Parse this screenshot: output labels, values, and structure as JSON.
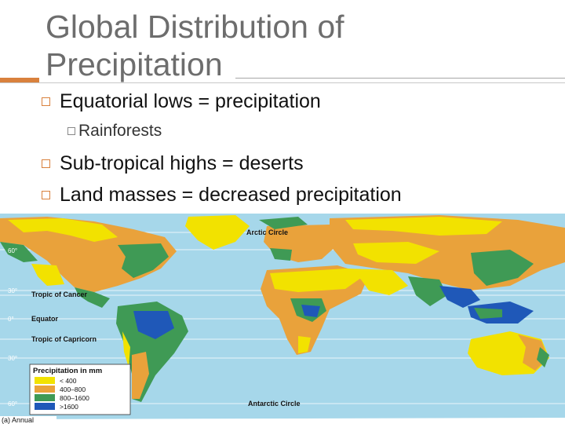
{
  "slide": {
    "title": "Global Distribution of Precipitation",
    "bullets": [
      {
        "text": "Equatorial lows = precipitation",
        "sub": [
          {
            "text": "Rainforests"
          }
        ]
      },
      {
        "text": "Sub-tropical highs = deserts",
        "sub": []
      },
      {
        "text": "Land masses = decreased precipitation",
        "sub": []
      }
    ]
  },
  "map": {
    "labels": {
      "arctic": "Arctic Circle",
      "cancer": "Tropic of Cancer",
      "equator": "Equator",
      "capricorn": "Tropic of Capricorn",
      "antarctic": "Antarctic Circle"
    },
    "latitudes": [
      "60°",
      "30°",
      "0°",
      "30°",
      "60°"
    ],
    "legend": {
      "title": "Precipitation in mm",
      "entries": [
        {
          "label": "< 400",
          "color": "#f2e200"
        },
        {
          "label": "400–800",
          "color": "#e9a23b"
        },
        {
          "label": "800–1600",
          "color": "#3f9a55"
        },
        {
          "label": ">1600",
          "color": "#1f58b8"
        }
      ]
    },
    "caption": "(a) Annual",
    "colors": {
      "ocean": "#a6d7ea",
      "lat_lines": "#ffffff"
    }
  }
}
